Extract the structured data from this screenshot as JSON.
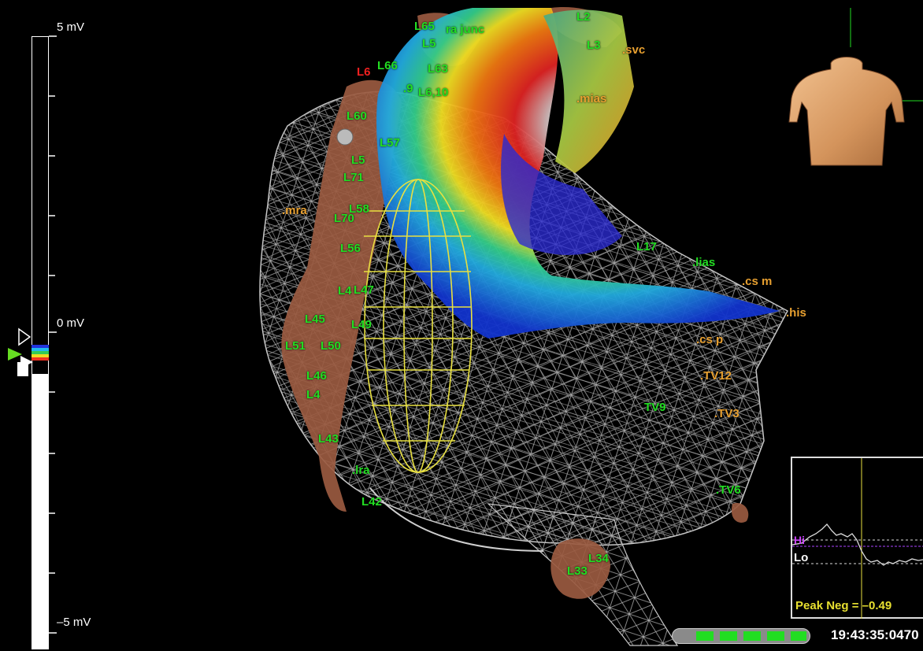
{
  "scale": {
    "top_label": "5 mV",
    "mid_label": "0 mV",
    "bottom_label": "–5 mV"
  },
  "labels": {
    "green": [
      "L65",
      "ra junc",
      "L2",
      "L3",
      "L5",
      "L66",
      "L63",
      ".9",
      "L6,10",
      "L60",
      "L57",
      "L5",
      "L71",
      "L70",
      "L58",
      "L56",
      "L47",
      "L4",
      "L45",
      "L49",
      "L51",
      "L50",
      "L46",
      "L4",
      "L43",
      ".lra",
      "L42",
      "L17",
      ".lias",
      "TV9",
      ".TV6",
      "L34",
      "L33"
    ],
    "orange": [
      ".svc",
      ".mias",
      ".mra",
      ".cs m",
      ".his",
      ".cs p",
      ".TV12",
      ".TV3"
    ],
    "red": [
      "L6"
    ]
  },
  "signal": {
    "hi": "Hi",
    "lo": "Lo",
    "peak": "Peak Neg = –0.49"
  },
  "progress": {
    "segments": 5
  },
  "timestamp": "19:43:35:0470",
  "colors": {
    "background": "#000000",
    "mesh": "#bdbdbd",
    "label_green": "#22dd22",
    "label_orange": "#e8a030",
    "peak_text": "#e8e030",
    "progress_green": "#22dd22"
  }
}
